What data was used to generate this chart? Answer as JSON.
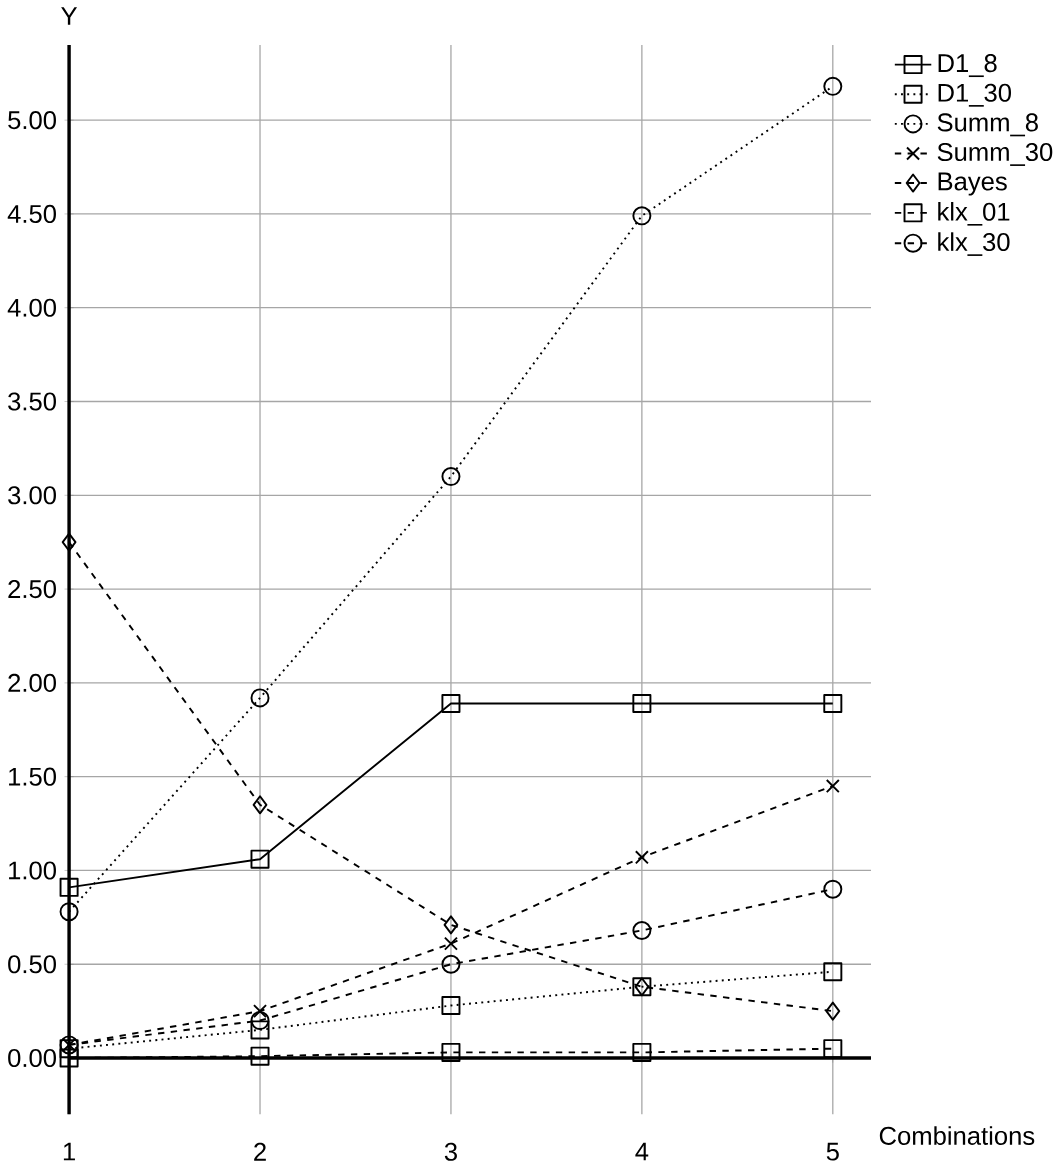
{
  "chart_data": {
    "type": "line",
    "xlabel": "Combinations",
    "ylabel": "Y",
    "x": [
      1,
      2,
      3,
      4,
      5
    ],
    "xlim": [
      1,
      5.2
    ],
    "xticks": [
      1,
      2,
      3,
      4,
      5
    ],
    "ylim": [
      -0.3,
      5.4
    ],
    "yticks": [
      {
        "value": 0,
        "label": "0.00"
      },
      {
        "value": 0.5,
        "label": "0.50"
      },
      {
        "value": 1,
        "label": "1.00"
      },
      {
        "value": 1.5,
        "label": "1.50"
      },
      {
        "value": 2,
        "label": "2.00"
      },
      {
        "value": 2.5,
        "label": "2.50"
      },
      {
        "value": 3,
        "label": "3.00"
      },
      {
        "value": 3.5,
        "label": "3.50"
      },
      {
        "value": 4,
        "label": "4.00"
      },
      {
        "value": 4.5,
        "label": "4.50"
      },
      {
        "value": 5,
        "label": "5.00"
      }
    ],
    "grid": true,
    "legend": "top right",
    "series": [
      {
        "name": "D1_8",
        "color": "#000000",
        "marker": "square",
        "line_style": "solid",
        "values": [
          0.91,
          1.06,
          1.89,
          1.89,
          1.89
        ]
      },
      {
        "name": "D1_30",
        "color": "#000000",
        "marker": "square",
        "line_style": "dotted",
        "values": [
          0.05,
          0.15,
          0.28,
          0.38,
          0.46
        ]
      },
      {
        "name": "Summ_8",
        "color": "#000000",
        "marker": "circle",
        "line_style": "dotted",
        "values": [
          0.78,
          1.92,
          3.1,
          4.49,
          5.18
        ]
      },
      {
        "name": "Summ_30",
        "color": "#000000",
        "marker": "cross",
        "line_style": "dashed",
        "values": [
          0.07,
          0.25,
          0.61,
          1.07,
          1.45
        ]
      },
      {
        "name": "Bayes",
        "color": "#000000",
        "marker": "diamond",
        "line_style": "dashed",
        "values": [
          2.75,
          1.35,
          0.71,
          0.38,
          0.25
        ]
      },
      {
        "name": "klx_01",
        "color": "#000000",
        "marker": "square",
        "line_style": "dashed",
        "values": [
          0.0,
          0.01,
          0.03,
          0.03,
          0.05
        ]
      },
      {
        "name": "klx_30",
        "color": "#000000",
        "marker": "circle",
        "line_style": "dashed",
        "values": [
          0.07,
          0.2,
          0.5,
          0.68,
          0.9
        ]
      }
    ]
  }
}
